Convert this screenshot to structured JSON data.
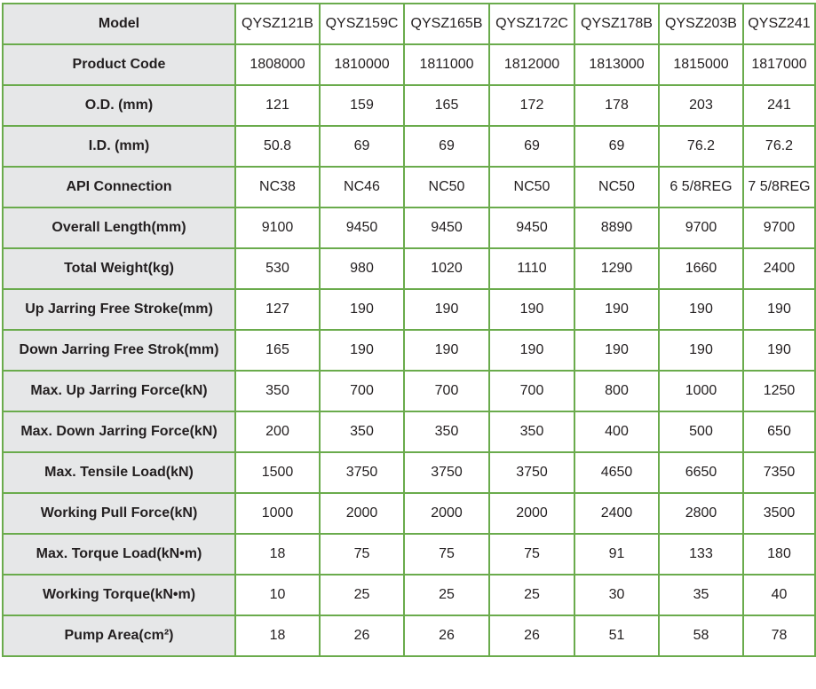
{
  "table": {
    "rows": [
      {
        "label": "Model",
        "values": [
          "QYSZ121B",
          "QYSZ159C",
          "QYSZ165B",
          "QYSZ172C",
          "QYSZ178B",
          "QYSZ203B",
          "QYSZ241"
        ]
      },
      {
        "label": "Product Code",
        "values": [
          "1808000",
          "1810000",
          "1811000",
          "1812000",
          "1813000",
          "1815000",
          "1817000"
        ]
      },
      {
        "label": "O.D. (mm)",
        "values": [
          "121",
          "159",
          "165",
          "172",
          "178",
          "203",
          "241"
        ]
      },
      {
        "label": "I.D. (mm)",
        "values": [
          "50.8",
          "69",
          "69",
          "69",
          "69",
          "76.2",
          "76.2"
        ]
      },
      {
        "label": "API Connection",
        "values": [
          "NC38",
          "NC46",
          "NC50",
          "NC50",
          "NC50",
          "6 5/8REG",
          "7 5/8REG"
        ]
      },
      {
        "label": "Overall Length(mm)",
        "values": [
          "9100",
          "9450",
          "9450",
          "9450",
          "8890",
          "9700",
          "9700"
        ]
      },
      {
        "label": "Total Weight(kg)",
        "values": [
          "530",
          "980",
          "1020",
          "1110",
          "1290",
          "1660",
          "2400"
        ]
      },
      {
        "label": "Up Jarring Free Stroke(mm)",
        "values": [
          "127",
          "190",
          "190",
          "190",
          "190",
          "190",
          "190"
        ]
      },
      {
        "label": "Down Jarring Free Strok(mm)",
        "values": [
          "165",
          "190",
          "190",
          "190",
          "190",
          "190",
          "190"
        ]
      },
      {
        "label": "Max. Up Jarring Force(kN)",
        "values": [
          "350",
          "700",
          "700",
          "700",
          "800",
          "1000",
          "1250"
        ]
      },
      {
        "label": "Max. Down Jarring Force(kN)",
        "values": [
          "200",
          "350",
          "350",
          "350",
          "400",
          "500",
          "650"
        ]
      },
      {
        "label": "Max. Tensile Load(kN)",
        "values": [
          "1500",
          "3750",
          "3750",
          "3750",
          "4650",
          "6650",
          "7350"
        ]
      },
      {
        "label": "Working Pull Force(kN)",
        "values": [
          "1000",
          "2000",
          "2000",
          "2000",
          "2400",
          "2800",
          "3500"
        ]
      },
      {
        "label": "Max. Torque Load(kN•m)",
        "values": [
          "18",
          "75",
          "75",
          "75",
          "91",
          "133",
          "180"
        ]
      },
      {
        "label": "Working Torque(kN•m)",
        "values": [
          "10",
          "25",
          "25",
          "25",
          "30",
          "35",
          "40"
        ]
      },
      {
        "label": "Pump Area(cm²)",
        "values": [
          "18",
          "26",
          "26",
          "26",
          "51",
          "58",
          "78"
        ]
      }
    ]
  }
}
